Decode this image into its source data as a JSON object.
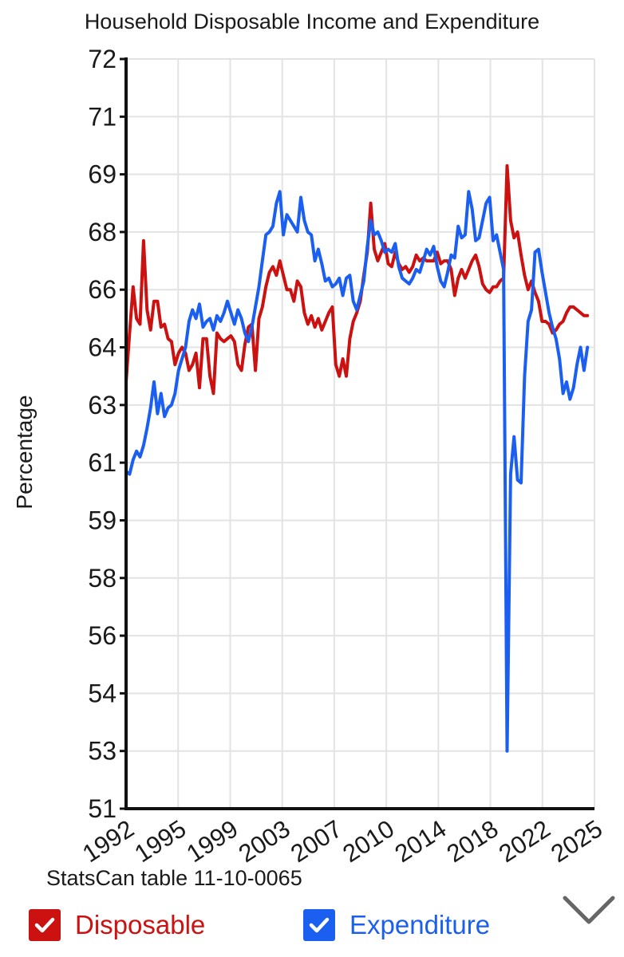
{
  "chart_data": {
    "type": "line",
    "title": "Household Disposable Income and Expenditure",
    "ylabel": "Percentage",
    "xlabel": "",
    "y_tick_labels": [
      "72",
      "71",
      "69",
      "68",
      "66",
      "64",
      "63",
      "61",
      "59",
      "58",
      "56",
      "54",
      "53",
      "51"
    ],
    "x_tick_labels": [
      "1992",
      "1995",
      "1999",
      "2003",
      "2007",
      "2010",
      "2014",
      "2018",
      "2022",
      "2025"
    ],
    "x_range": [
      1992.0,
      2025.5
    ],
    "grid": true,
    "legend_placement": "bottom",
    "series": [
      {
        "name": "Disposable",
        "color": "#cc1111",
        "points": [
          [
            1992.0,
            63.4
          ],
          [
            1992.25,
            64.5
          ],
          [
            1992.5,
            66.1
          ],
          [
            1992.75,
            65.0
          ],
          [
            1993.0,
            64.8
          ],
          [
            1993.25,
            67.7
          ],
          [
            1993.5,
            65.3
          ],
          [
            1993.75,
            64.6
          ],
          [
            1994.0,
            65.6
          ],
          [
            1994.25,
            65.6
          ],
          [
            1994.5,
            64.7
          ],
          [
            1994.75,
            64.8
          ],
          [
            1995.0,
            64.3
          ],
          [
            1995.25,
            64.2
          ],
          [
            1995.5,
            63.7
          ],
          [
            1995.75,
            63.9
          ],
          [
            1996.0,
            64.0
          ],
          [
            1996.25,
            63.9
          ],
          [
            1996.5,
            63.6
          ],
          [
            1996.75,
            63.7
          ],
          [
            1997.0,
            63.9
          ],
          [
            1997.25,
            63.3
          ],
          [
            1997.5,
            64.3
          ],
          [
            1997.75,
            64.3
          ],
          [
            1998.0,
            63.5
          ],
          [
            1998.25,
            63.2
          ],
          [
            1998.5,
            64.5
          ],
          [
            1998.75,
            64.3
          ],
          [
            1999.0,
            64.2
          ],
          [
            1999.25,
            64.3
          ],
          [
            1999.5,
            64.4
          ],
          [
            1999.75,
            64.2
          ],
          [
            2000.0,
            63.7
          ],
          [
            2000.25,
            63.6
          ],
          [
            2000.5,
            64.1
          ],
          [
            2000.75,
            64.7
          ],
          [
            2001.0,
            64.8
          ],
          [
            2001.25,
            63.6
          ],
          [
            2001.5,
            65.0
          ],
          [
            2001.75,
            65.4
          ],
          [
            2002.0,
            66.1
          ],
          [
            2002.25,
            66.6
          ],
          [
            2002.5,
            66.8
          ],
          [
            2002.75,
            66.5
          ],
          [
            2003.0,
            67.0
          ],
          [
            2003.25,
            66.5
          ],
          [
            2003.5,
            66.0
          ],
          [
            2003.75,
            66.0
          ],
          [
            2004.0,
            65.6
          ],
          [
            2004.25,
            66.3
          ],
          [
            2004.5,
            66.1
          ],
          [
            2004.75,
            65.2
          ],
          [
            2005.0,
            64.8
          ],
          [
            2005.25,
            65.1
          ],
          [
            2005.5,
            64.7
          ],
          [
            2005.75,
            65.0
          ],
          [
            2006.0,
            64.6
          ],
          [
            2006.25,
            64.9
          ],
          [
            2006.5,
            65.2
          ],
          [
            2006.75,
            65.4
          ],
          [
            2007.0,
            63.7
          ],
          [
            2007.25,
            63.5
          ],
          [
            2007.5,
            63.8
          ],
          [
            2007.75,
            63.5
          ],
          [
            2008.0,
            64.3
          ],
          [
            2008.25,
            64.9
          ],
          [
            2008.5,
            65.2
          ],
          [
            2008.75,
            65.6
          ],
          [
            2009.0,
            66.5
          ],
          [
            2009.25,
            67.3
          ],
          [
            2009.5,
            68.5
          ],
          [
            2009.75,
            67.4
          ],
          [
            2010.0,
            67.0
          ],
          [
            2010.25,
            67.3
          ],
          [
            2010.5,
            67.6
          ],
          [
            2010.75,
            66.9
          ],
          [
            2011.0,
            66.8
          ],
          [
            2011.25,
            67.3
          ],
          [
            2011.5,
            66.9
          ],
          [
            2011.75,
            66.7
          ],
          [
            2012.0,
            66.8
          ],
          [
            2012.25,
            66.6
          ],
          [
            2012.5,
            66.8
          ],
          [
            2012.75,
            67.2
          ],
          [
            2013.0,
            67.0
          ],
          [
            2013.25,
            67.1
          ],
          [
            2013.5,
            67.0
          ],
          [
            2013.75,
            67.0
          ],
          [
            2014.0,
            67.0
          ],
          [
            2014.25,
            67.3
          ],
          [
            2014.5,
            66.9
          ],
          [
            2014.75,
            67.0
          ],
          [
            2015.0,
            67.0
          ],
          [
            2015.25,
            66.7
          ],
          [
            2015.5,
            65.8
          ],
          [
            2015.75,
            66.4
          ],
          [
            2016.0,
            66.7
          ],
          [
            2016.25,
            66.4
          ],
          [
            2016.5,
            66.7
          ],
          [
            2016.75,
            67.0
          ],
          [
            2017.0,
            67.2
          ],
          [
            2017.25,
            66.8
          ],
          [
            2017.5,
            66.2
          ],
          [
            2017.75,
            66.0
          ],
          [
            2018.0,
            65.9
          ],
          [
            2018.25,
            66.1
          ],
          [
            2018.5,
            66.1
          ],
          [
            2018.75,
            66.3
          ],
          [
            2019.0,
            66.4
          ],
          [
            2019.25,
            69.3
          ],
          [
            2019.5,
            68.2
          ],
          [
            2019.75,
            67.8
          ],
          [
            2020.0,
            68.0
          ],
          [
            2020.25,
            67.2
          ],
          [
            2020.5,
            66.5
          ],
          [
            2020.75,
            66.0
          ],
          [
            2021.0,
            66.3
          ],
          [
            2021.25,
            65.9
          ],
          [
            2021.5,
            65.6
          ],
          [
            2021.75,
            64.9
          ],
          [
            2022.0,
            64.9
          ],
          [
            2022.25,
            64.8
          ],
          [
            2022.5,
            64.5
          ],
          [
            2022.75,
            64.6
          ],
          [
            2023.0,
            64.8
          ],
          [
            2023.25,
            64.9
          ],
          [
            2023.5,
            65.2
          ],
          [
            2023.75,
            65.4
          ],
          [
            2024.0,
            65.4
          ],
          [
            2024.25,
            65.3
          ],
          [
            2024.5,
            65.2
          ],
          [
            2024.75,
            65.1
          ],
          [
            2025.0,
            65.1
          ]
        ]
      },
      {
        "name": "Expenditure",
        "color": "#1a5ff0",
        "points": [
          [
            1992.0,
            60.7
          ],
          [
            1992.25,
            60.6
          ],
          [
            1992.5,
            61.1
          ],
          [
            1992.75,
            61.4
          ],
          [
            1993.0,
            61.2
          ],
          [
            1993.25,
            61.6
          ],
          [
            1993.5,
            62.2
          ],
          [
            1993.75,
            62.9
          ],
          [
            1994.0,
            63.4
          ],
          [
            1994.25,
            62.7
          ],
          [
            1994.5,
            63.2
          ],
          [
            1994.75,
            62.6
          ],
          [
            1995.0,
            62.9
          ],
          [
            1995.25,
            63.0
          ],
          [
            1995.5,
            63.2
          ],
          [
            1995.75,
            63.6
          ],
          [
            1996.0,
            63.8
          ],
          [
            1996.25,
            64.0
          ],
          [
            1996.5,
            64.9
          ],
          [
            1996.75,
            65.3
          ],
          [
            1997.0,
            65.0
          ],
          [
            1997.25,
            65.5
          ],
          [
            1997.5,
            64.7
          ],
          [
            1997.75,
            64.9
          ],
          [
            1998.0,
            65.0
          ],
          [
            1998.25,
            64.6
          ],
          [
            1998.5,
            65.1
          ],
          [
            1998.75,
            64.9
          ],
          [
            1999.0,
            65.2
          ],
          [
            1999.25,
            65.6
          ],
          [
            1999.5,
            65.2
          ],
          [
            1999.75,
            64.8
          ],
          [
            2000.0,
            65.3
          ],
          [
            2000.25,
            65.0
          ],
          [
            2000.5,
            64.5
          ],
          [
            2000.75,
            64.2
          ],
          [
            2001.0,
            64.7
          ],
          [
            2001.25,
            65.4
          ],
          [
            2001.5,
            66.1
          ],
          [
            2001.75,
            67.0
          ],
          [
            2002.0,
            67.9
          ],
          [
            2002.25,
            68.0
          ],
          [
            2002.5,
            68.1
          ],
          [
            2002.75,
            68.5
          ],
          [
            2003.0,
            68.7
          ],
          [
            2003.25,
            67.9
          ],
          [
            2003.5,
            68.3
          ],
          [
            2003.75,
            68.2
          ],
          [
            2004.0,
            68.1
          ],
          [
            2004.25,
            68.0
          ],
          [
            2004.5,
            68.6
          ],
          [
            2004.75,
            68.2
          ],
          [
            2005.0,
            68.0
          ],
          [
            2005.25,
            67.9
          ],
          [
            2005.5,
            67.0
          ],
          [
            2005.75,
            67.4
          ],
          [
            2006.0,
            66.9
          ],
          [
            2006.25,
            66.3
          ],
          [
            2006.5,
            66.4
          ],
          [
            2006.75,
            66.1
          ],
          [
            2007.0,
            66.2
          ],
          [
            2007.25,
            66.4
          ],
          [
            2007.5,
            65.8
          ],
          [
            2007.75,
            66.4
          ],
          [
            2008.0,
            66.5
          ],
          [
            2008.25,
            65.6
          ],
          [
            2008.5,
            65.3
          ],
          [
            2008.75,
            65.8
          ],
          [
            2009.0,
            66.3
          ],
          [
            2009.25,
            67.5
          ],
          [
            2009.5,
            68.2
          ],
          [
            2009.75,
            67.9
          ],
          [
            2010.0,
            68.0
          ],
          [
            2010.25,
            67.7
          ],
          [
            2010.5,
            67.3
          ],
          [
            2010.75,
            67.4
          ],
          [
            2011.0,
            67.3
          ],
          [
            2011.25,
            67.6
          ],
          [
            2011.5,
            66.8
          ],
          [
            2011.75,
            66.4
          ],
          [
            2012.0,
            66.3
          ],
          [
            2012.25,
            66.2
          ],
          [
            2012.5,
            66.4
          ],
          [
            2012.75,
            66.7
          ],
          [
            2013.0,
            66.6
          ],
          [
            2013.25,
            67.0
          ],
          [
            2013.5,
            67.4
          ],
          [
            2013.75,
            67.2
          ],
          [
            2014.0,
            67.5
          ],
          [
            2014.25,
            66.8
          ],
          [
            2014.5,
            66.3
          ],
          [
            2014.75,
            66.1
          ],
          [
            2015.0,
            66.6
          ],
          [
            2015.25,
            67.2
          ],
          [
            2015.5,
            67.1
          ],
          [
            2015.75,
            68.1
          ],
          [
            2016.0,
            67.8
          ],
          [
            2016.25,
            67.9
          ],
          [
            2016.5,
            68.7
          ],
          [
            2016.75,
            68.4
          ],
          [
            2017.0,
            67.7
          ],
          [
            2017.25,
            67.8
          ],
          [
            2017.5,
            68.2
          ],
          [
            2017.75,
            68.5
          ],
          [
            2018.0,
            68.6
          ],
          [
            2018.25,
            67.7
          ],
          [
            2018.5,
            67.9
          ],
          [
            2018.75,
            67.3
          ],
          [
            2019.0,
            66.7
          ],
          [
            2019.25,
            53.0
          ],
          [
            2019.5,
            60.6
          ],
          [
            2019.75,
            61.9
          ],
          [
            2020.0,
            60.4
          ],
          [
            2020.25,
            60.3
          ],
          [
            2020.5,
            63.5
          ],
          [
            2020.75,
            64.9
          ],
          [
            2021.0,
            65.3
          ],
          [
            2021.25,
            67.3
          ],
          [
            2021.5,
            67.4
          ],
          [
            2021.75,
            66.6
          ],
          [
            2022.0,
            65.9
          ],
          [
            2022.25,
            65.2
          ],
          [
            2022.5,
            64.7
          ],
          [
            2022.75,
            64.3
          ],
          [
            2023.0,
            63.8
          ],
          [
            2023.25,
            63.2
          ],
          [
            2023.5,
            63.4
          ],
          [
            2023.75,
            63.1
          ],
          [
            2024.0,
            63.3
          ],
          [
            2024.25,
            63.7
          ],
          [
            2024.5,
            64.0
          ],
          [
            2024.75,
            63.6
          ],
          [
            2025.0,
            64.0
          ]
        ]
      }
    ]
  },
  "source_note": "StatsCan table 11-10-0065",
  "legend": [
    {
      "label": "Disposable",
      "color": "#cc1111",
      "checked": true
    },
    {
      "label": "Expenditure",
      "color": "#1a5ff0",
      "checked": true
    }
  ],
  "collapse_icon": "chevron-down-icon"
}
